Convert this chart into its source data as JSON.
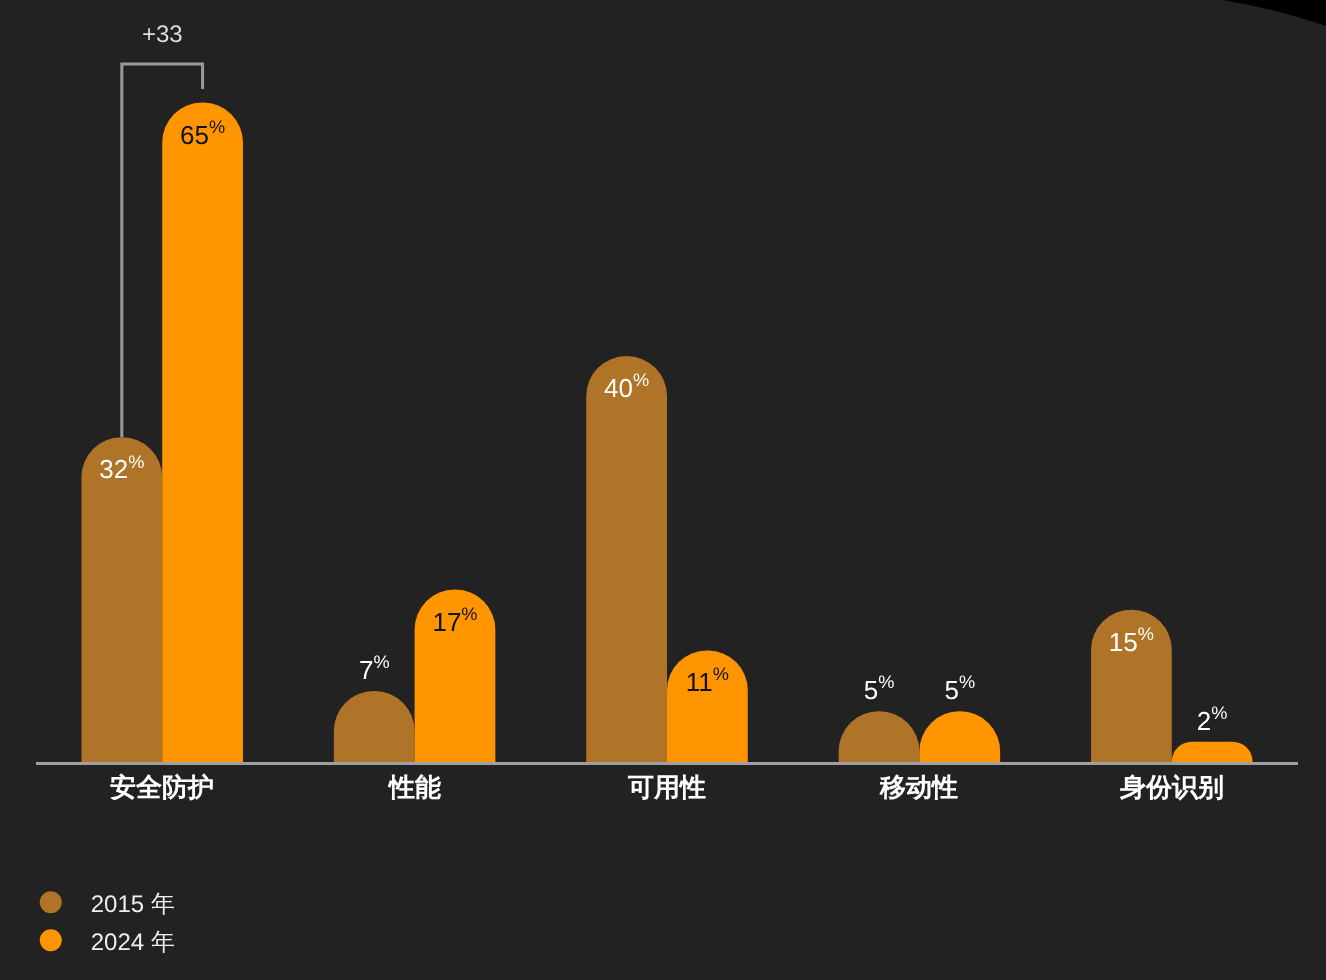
{
  "chart_data": {
    "type": "bar",
    "categories": [
      "安全防护",
      "性能",
      "可用性",
      "移动性",
      "身份识别"
    ],
    "series": [
      {
        "name": "2015 年",
        "color": "#b07428",
        "values": [
          32,
          7,
          40,
          5,
          15
        ],
        "value_labels": [
          "32$^{%}$",
          "7$^{%}$",
          "40$^{%}$",
          "5$^{%}$",
          "15$^{%}$"
        ]
      },
      {
        "name": "2024 年",
        "color": "#ff9500",
        "values": [
          65,
          17,
          11,
          5,
          2
        ],
        "value_labels": [
          "65$^{%}$",
          "17$^{%}$",
          "11$^{%}$",
          "5$^{%}$",
          "2$^{%}$"
        ]
      }
    ],
    "annotations": [
      "+33"
    ],
    "legend": "bottom left"
  }
}
